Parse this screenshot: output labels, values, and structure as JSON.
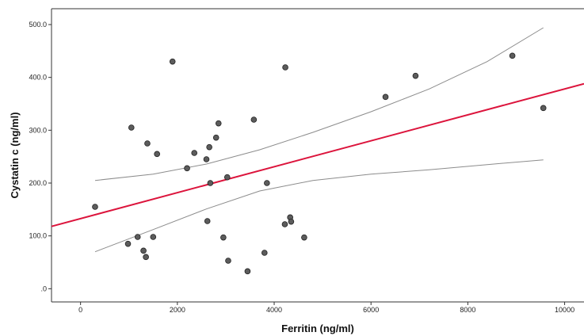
{
  "chart_data": {
    "type": "scatter",
    "title": "",
    "xlabel": "Ferritin (ng/ml)",
    "ylabel": "Cystatin c (ng/ml)",
    "xlim": [
      -600,
      10400
    ],
    "ylim": [
      -25,
      530
    ],
    "x_ticks": [
      0,
      2000,
      4000,
      6000,
      8000,
      10000
    ],
    "x_tick_labels": [
      "0",
      "2000",
      "4000",
      "6000",
      "8000",
      "10000"
    ],
    "y_ticks": [
      0,
      100,
      200,
      300,
      400,
      500
    ],
    "y_tick_labels": [
      ".0",
      "100.0",
      "200.0",
      "300.0",
      "400.0",
      "500.0"
    ],
    "grid": false,
    "points": [
      {
        "x": 300,
        "y": 155
      },
      {
        "x": 980,
        "y": 85
      },
      {
        "x": 1050,
        "y": 305
      },
      {
        "x": 1180,
        "y": 98
      },
      {
        "x": 1300,
        "y": 72
      },
      {
        "x": 1350,
        "y": 60
      },
      {
        "x": 1380,
        "y": 275
      },
      {
        "x": 1500,
        "y": 98
      },
      {
        "x": 1580,
        "y": 255
      },
      {
        "x": 1900,
        "y": 430
      },
      {
        "x": 2200,
        "y": 228
      },
      {
        "x": 2350,
        "y": 257
      },
      {
        "x": 2600,
        "y": 245
      },
      {
        "x": 2620,
        "y": 128
      },
      {
        "x": 2660,
        "y": 268
      },
      {
        "x": 2680,
        "y": 200
      },
      {
        "x": 2800,
        "y": 286
      },
      {
        "x": 2850,
        "y": 313
      },
      {
        "x": 2950,
        "y": 97
      },
      {
        "x": 3030,
        "y": 211
      },
      {
        "x": 3050,
        "y": 53
      },
      {
        "x": 3450,
        "y": 33
      },
      {
        "x": 3580,
        "y": 320
      },
      {
        "x": 3800,
        "y": 68
      },
      {
        "x": 3850,
        "y": 200
      },
      {
        "x": 4220,
        "y": 122
      },
      {
        "x": 4230,
        "y": 419
      },
      {
        "x": 4330,
        "y": 135
      },
      {
        "x": 4350,
        "y": 127
      },
      {
        "x": 4620,
        "y": 97
      },
      {
        "x": 6300,
        "y": 363
      },
      {
        "x": 6920,
        "y": 403
      },
      {
        "x": 8920,
        "y": 441
      },
      {
        "x": 9560,
        "y": 342
      }
    ],
    "fit_line": {
      "x": [
        -600,
        10400
      ],
      "y": [
        118,
        388
      ]
    },
    "ci_upper": {
      "x": [
        300,
        1500,
        2600,
        3700,
        4800,
        6000,
        7200,
        8400,
        9560
      ],
      "y": [
        205,
        217,
        236,
        263,
        296,
        335,
        378,
        430,
        494
      ]
    },
    "ci_lower": {
      "x": [
        300,
        1500,
        2600,
        3700,
        4800,
        6000,
        7200,
        8400,
        9560
      ],
      "y": [
        70,
        112,
        151,
        185,
        205,
        217,
        225,
        235,
        244
      ]
    },
    "colors": {
      "fit_line": "#dc143c",
      "ci_line": "#8c8c8c",
      "marker_fill": "#5c5c5c",
      "marker_stroke": "#222222",
      "axis": "#333333"
    }
  }
}
